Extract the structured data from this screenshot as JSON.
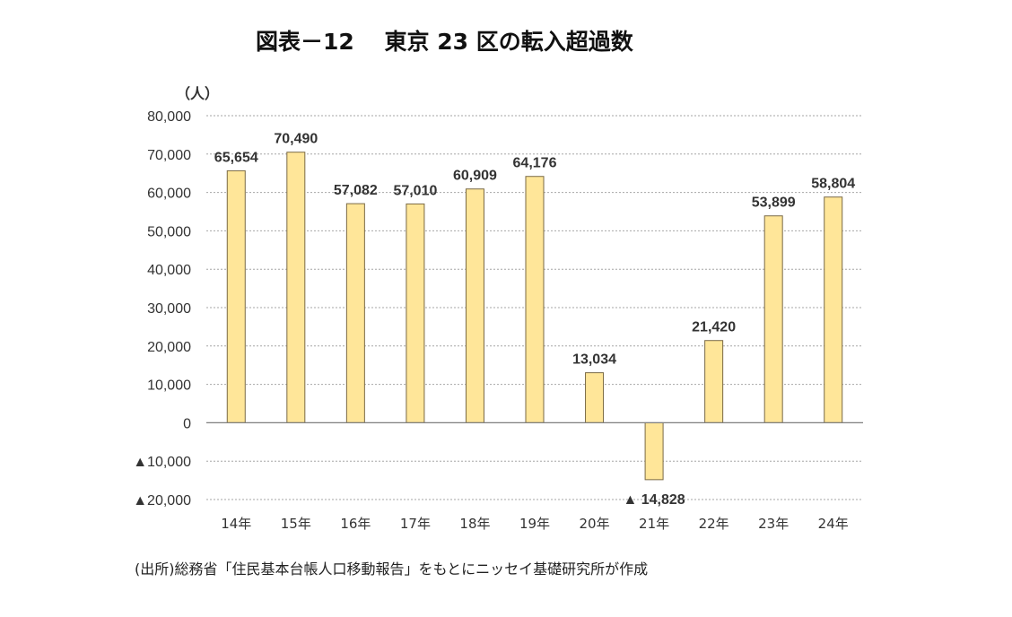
{
  "chart_data": {
    "type": "bar",
    "title": "図表－12　 東京 23 区の転入超過数",
    "ylabel": "（人）",
    "source": "(出所)総務省「住民基本台帳人口移動報告」をもとにニッセイ基礎研究所が作成",
    "categories": [
      "14年",
      "15年",
      "16年",
      "17年",
      "18年",
      "19年",
      "20年",
      "21年",
      "22年",
      "23年",
      "24年"
    ],
    "values": [
      65654,
      70490,
      57082,
      57010,
      60909,
      64176,
      13034,
      -14828,
      21420,
      53899,
      58804
    ],
    "value_labels": [
      "65,654",
      "70,490",
      "57,082",
      "57,010",
      "60,909",
      "64,176",
      "13,034",
      "▲ 14,828",
      "21,420",
      "53,899",
      "58,804"
    ],
    "ylim": [
      -20000,
      80000
    ],
    "yticks": [
      80000,
      70000,
      60000,
      50000,
      40000,
      30000,
      20000,
      10000,
      0,
      -10000,
      -20000
    ],
    "ytick_labels": [
      "80,000",
      "70,000",
      "60,000",
      "50,000",
      "40,000",
      "30,000",
      "20,000",
      "10,000",
      "0",
      "▲10,000",
      "▲20,000"
    ],
    "grid": true,
    "colors": {
      "bar_fill": "#ffe699",
      "bar_stroke": "#7a6a45"
    }
  }
}
